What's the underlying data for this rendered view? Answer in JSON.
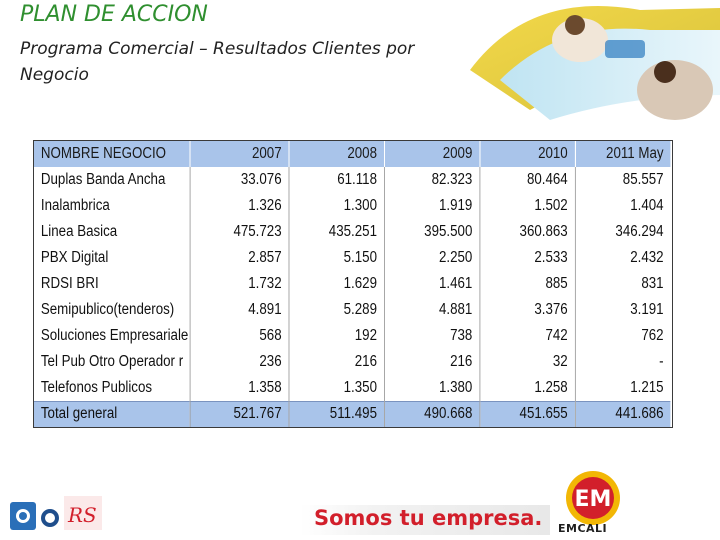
{
  "slide": {
    "title": "PLAN DE ACCION",
    "subtitle": "Programa Comercial – Resultados Clientes por Negocio"
  },
  "table": {
    "headers": [
      "NOMBRE NEGOCIO",
      "2007",
      "2008",
      "2009",
      "2010",
      "2011 May"
    ],
    "rows": [
      [
        "Duplas Banda Ancha",
        "33.076",
        "61.118",
        "82.323",
        "80.464",
        "85.557"
      ],
      [
        "Inalambrica",
        "1.326",
        "1.300",
        "1.919",
        "1.502",
        "1.404"
      ],
      [
        "Linea Basica",
        "475.723",
        "435.251",
        "395.500",
        "360.863",
        "346.294"
      ],
      [
        "PBX Digital",
        "2.857",
        "5.150",
        "2.250",
        "2.533",
        "2.432"
      ],
      [
        "RDSI BRI",
        "1.732",
        "1.629",
        "1.461",
        "885",
        "831"
      ],
      [
        "Semipublico(tenderos)",
        "4.891",
        "5.289",
        "4.881",
        "3.376",
        "3.191"
      ],
      [
        "Soluciones Empresariale",
        "568",
        "192",
        "738",
        "742",
        "762"
      ],
      [
        "Tel Pub Otro Operador r",
        "236",
        "216",
        "216",
        "32",
        "-"
      ],
      [
        "Telefonos Publicos",
        "1.358",
        "1.350",
        "1.380",
        "1.258",
        "1.215"
      ]
    ],
    "total": [
      "Total general",
      "521.767",
      "511.495",
      "490.668",
      "451.655",
      "441.686"
    ]
  },
  "footer": {
    "slogan": "Somos tu empresa.",
    "logo_text": "EMCALI",
    "logo_monogram": "EM",
    "rs_mark": "RS"
  },
  "colors": {
    "title": "#2f8f2f",
    "table_header_bg": "#a9c4ea",
    "slogan": "#d21f2b",
    "logo_red": "#d21f2b",
    "logo_yellow": "#f2b705"
  }
}
